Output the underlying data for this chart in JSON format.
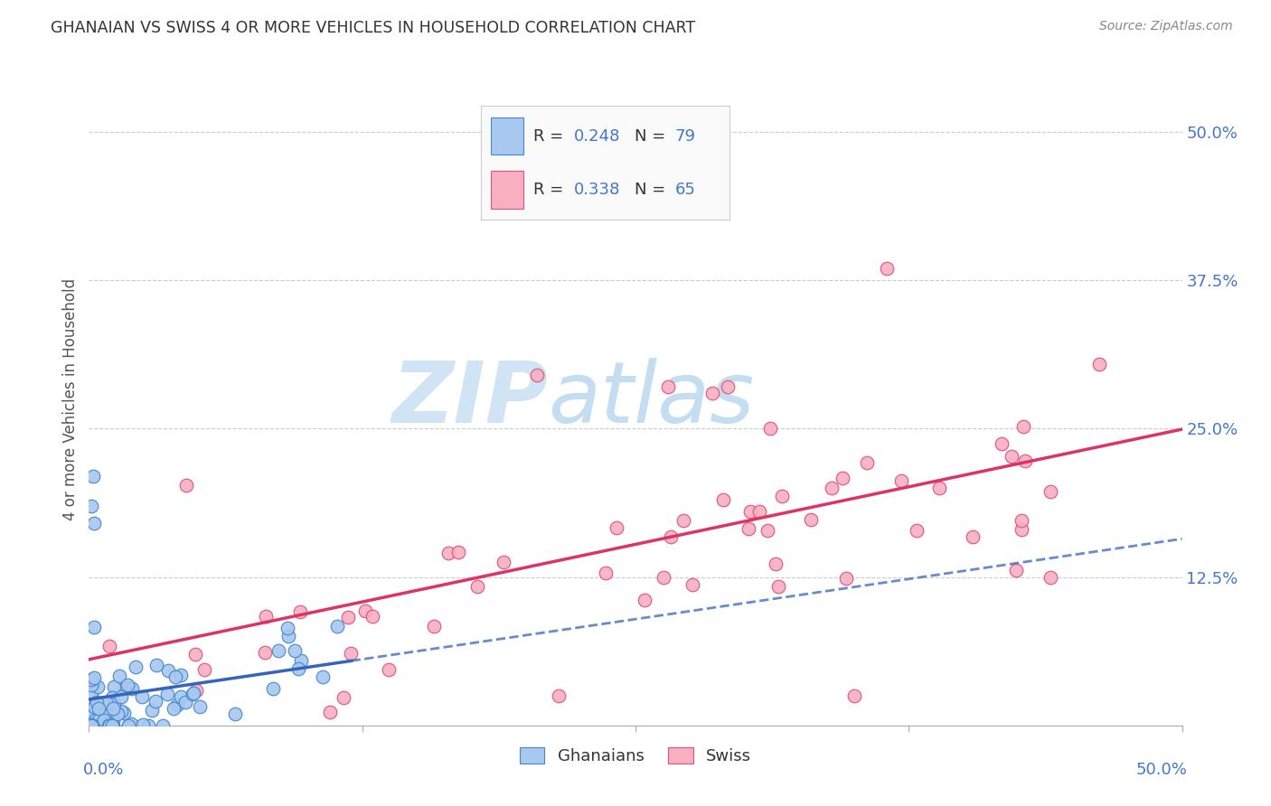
{
  "title": "GHANAIAN VS SWISS 4 OR MORE VEHICLES IN HOUSEHOLD CORRELATION CHART",
  "source": "Source: ZipAtlas.com",
  "ylabel": "4 or more Vehicles in Household",
  "watermark_zip": "ZIP",
  "watermark_atlas": "atlas",
  "legend_blue_r": "0.248",
  "legend_blue_n": "79",
  "legend_pink_r": "0.338",
  "legend_pink_n": "65",
  "blue_fill": "#a8c8f0",
  "pink_fill": "#f8b0c0",
  "blue_edge": "#4488cc",
  "pink_edge": "#e05080",
  "blue_line": "#3366bb",
  "pink_line": "#dd3366",
  "axis_label_color": "#4477cc",
  "title_color": "#333333",
  "source_color": "#888888",
  "grid_color": "#cccccc",
  "background": "#ffffff",
  "xlim": [
    0.0,
    0.5
  ],
  "ylim": [
    0.0,
    0.55
  ],
  "ytick_vals": [
    0.0,
    0.125,
    0.25,
    0.375,
    0.5
  ],
  "ytick_labels": [
    "",
    "12.5%",
    "25.0%",
    "37.5%",
    "50.0%"
  ],
  "xtick_bottom_labels": [
    "0.0%",
    "50.0%"
  ],
  "legend_label_ghanaians": "Ghanaians",
  "legend_label_swiss": "Swiss"
}
